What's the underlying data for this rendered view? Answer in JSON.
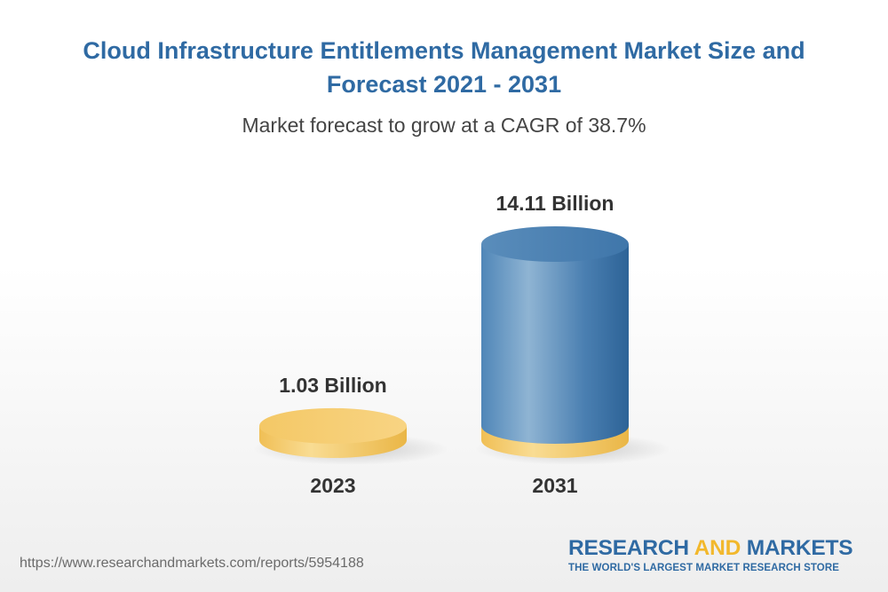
{
  "chart_data": {
    "type": "bar",
    "title": "Cloud Infrastructure Entitlements Management Market Size and Forecast 2021 - 2031",
    "subtitle": "Market forecast to grow at a CAGR of 38.7%",
    "categories": [
      "2023",
      "2031"
    ],
    "values": [
      1.03,
      14.11
    ],
    "data_labels": [
      "1.03 Billion",
      "14.11 Billion"
    ],
    "unit": "Billion",
    "colors": {
      "base": "#f5c96a",
      "cylinder": "#4f86b8",
      "title": "#2f6aa3"
    },
    "grid": false
  },
  "footer": {
    "source_url": "https://www.researchandmarkets.com/reports/5954188"
  },
  "logo": {
    "word1": "RESEARCH",
    "word2": "AND",
    "word3": "MARKETS",
    "tagline": "THE WORLD'S LARGEST MARKET RESEARCH STORE"
  }
}
